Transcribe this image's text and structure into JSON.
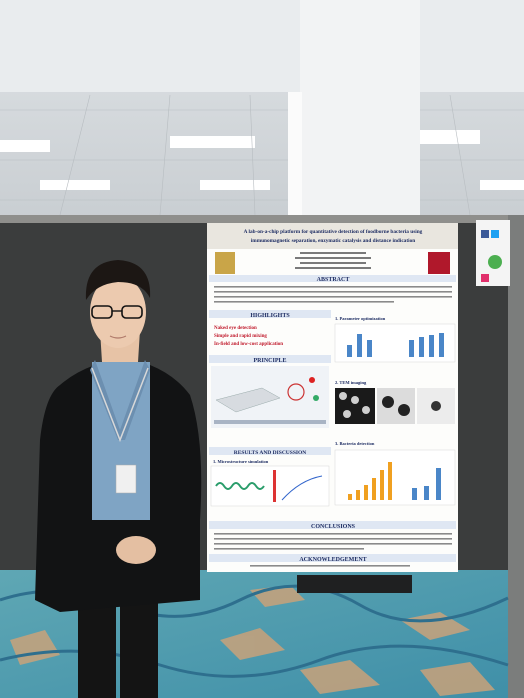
{
  "poster": {
    "title_lines": [
      "A lab-on-a-chip platform for quantitative detection of foodborne bacteria using",
      "immunomagnetic separation, enzymatic catalysis and distance indication"
    ],
    "sections": {
      "abstract": "ABSTRACT",
      "highlights": "HIGHLIGHTS",
      "principle": "PRINCIPLE",
      "results": "RESULTS AND DISCUSSION",
      "conclusions": "CONCLUSIONS",
      "acknowledgement": "ACKNOWLEDGEMENT"
    },
    "highlights": [
      "Naked eye detection",
      "Simple and rapid mixing",
      "In-field and low-cost application"
    ],
    "subsections": [
      "1. Microstructure simulation",
      "1. Parameter optimization",
      "2. TEM imaging",
      "3. Bacteria detection"
    ]
  }
}
